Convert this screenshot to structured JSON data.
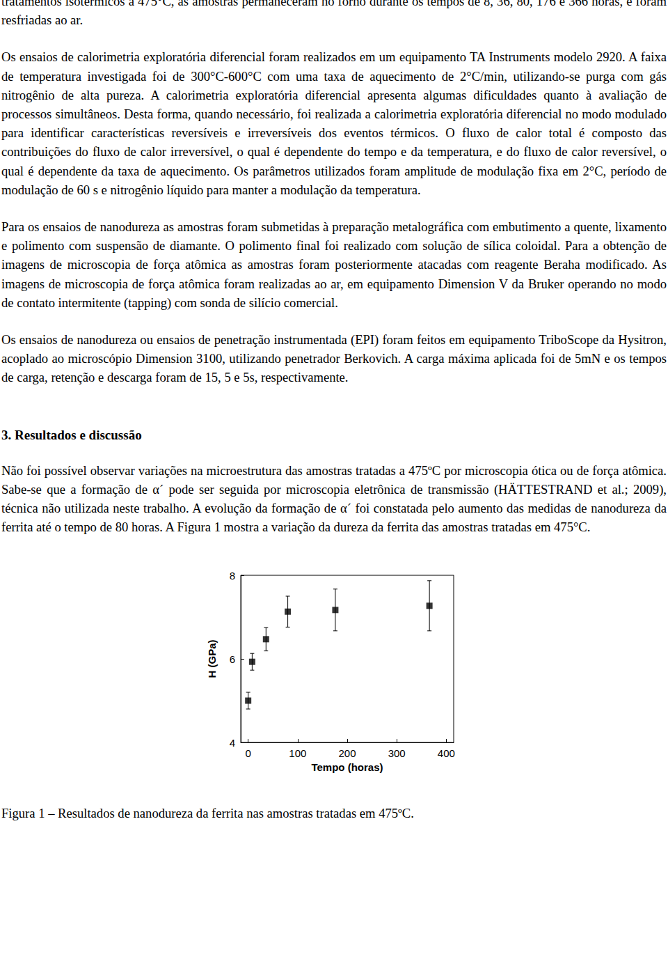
{
  "page": {
    "paragraphs_before": [
      "tratamentos isotérmicos a 475°C, as amostras permaneceram no forno durante os tempos de 8, 36, 80, 176 e 366 horas, e foram resfriadas ao ar.",
      "Os ensaios de calorimetria exploratória diferencial foram realizados em um equipamento TA Instruments modelo 2920. A faixa de temperatura investigada foi de 300°C-600°C com uma taxa de aquecimento de 2°C/min, utilizando-se purga com gás nitrogênio de alta pureza. A calorimetria exploratória diferencial apresenta algumas dificuldades quanto à avaliação de processos simultâneos. Desta forma, quando necessário, foi realizada a calorimetria exploratória diferencial no modo modulado para identificar características reversíveis e irreversíveis dos eventos térmicos. O fluxo de calor total é composto das contribuições do fluxo de calor irreversível, o qual é dependente do tempo e da temperatura, e do fluxo de calor reversível, o qual é dependente da taxa de aquecimento. Os parâmetros utilizados foram amplitude de modulação fixa em 2°C, período de modulação de 60 s e nitrogênio líquido para manter a modulação da temperatura.",
      "Para os ensaios de nanodureza as amostras foram submetidas à preparação metalográfica com embutimento a quente, lixamento e polimento com suspensão de diamante. O polimento final foi realizado com solução de sílica coloidal. Para a obtenção de imagens de microscopia de força atômica as amostras foram posteriormente atacadas com reagente Beraha modificado. As imagens de microscopia de força atômica foram realizadas ao ar, em equipamento Dimension V da Bruker operando no modo de contato intermitente (tapping) com sonda de silício comercial.",
      "Os ensaios de nanodureza ou ensaios de penetração instrumentada (EPI) foram feitos em equipamento TriboScope da Hysitron, acoplado ao microscópio Dimension 3100, utilizando penetrador Berkovich. A carga máxima aplicada foi de 5mN e os tempos de carga, retenção e descarga foram de 15, 5 e 5s, respectivamente."
    ],
    "heading": "3. Resultados e discussão",
    "paragraphs_after": [
      "Não foi possível observar variações na microestrutura das amostras tratadas a 475ºC por microscopia ótica ou de força atômica. Sabe-se que a formação de α´ pode ser seguida por microscopia eletrônica de transmissão (HÄTTESTRAND et al.; 2009), técnica não utilizada neste trabalho. A evolução da formação de α´ foi constatada pelo aumento das medidas de nanodureza da ferrita até o tempo de 80 horas. A Figura 1 mostra a variação da dureza da ferrita das amostras tratadas em 475°C."
    ],
    "caption": "Figura 1 – Resultados de nanodureza da ferrita nas amostras tratadas em 475ºC."
  },
  "chart_data": {
    "type": "scatter",
    "x_label": "Tempo (horas)",
    "y_label": "H (GPa)",
    "x": [
      0,
      8,
      36,
      80,
      176,
      366
    ],
    "values": [
      5.0,
      5.93,
      6.47,
      7.13,
      7.17,
      7.27
    ],
    "errors": [
      0.2,
      0.2,
      0.28,
      0.37,
      0.5,
      0.6
    ],
    "xlim": [
      -15,
      415
    ],
    "xticks": [
      0,
      100,
      200,
      300,
      400
    ],
    "ylim": [
      4,
      8
    ],
    "yticks": [
      4,
      6,
      8
    ],
    "marker": "square",
    "color": "#000000"
  }
}
